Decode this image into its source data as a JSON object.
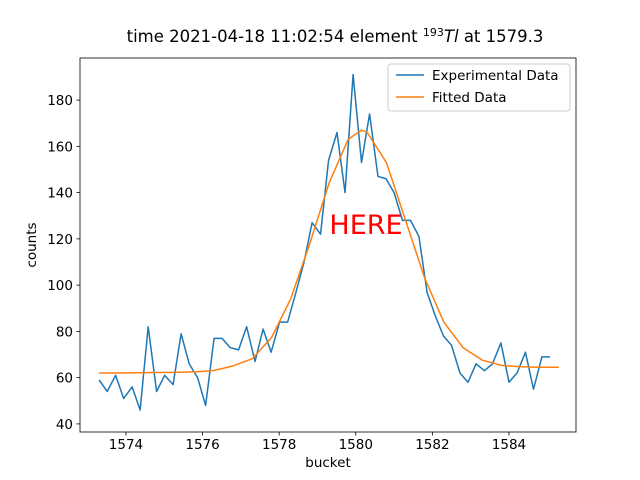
{
  "chart_data": {
    "type": "line",
    "title": {
      "before": "time 2021-04-18 11:02:54 element ",
      "isotope": "193",
      "symbol": "Tl",
      "after": " at 1579.3"
    },
    "xlabel": "bucket",
    "ylabel": "counts",
    "annotation": "HERE",
    "annotation_color": "#ff0000",
    "xlim": [
      1572.8,
      1585.75
    ],
    "ylim": [
      36.5,
      198.2
    ],
    "xticks": [
      1574,
      1576,
      1578,
      1580,
      1582,
      1584
    ],
    "yticks": [
      40,
      60,
      80,
      100,
      120,
      140,
      160,
      180
    ],
    "legend": "upper right",
    "series": [
      {
        "name": "Experimental Data",
        "color": "#1f77b4",
        "x": [
          1573.3,
          1573.51,
          1573.73,
          1573.94,
          1574.16,
          1574.37,
          1574.58,
          1574.8,
          1575.01,
          1575.23,
          1575.44,
          1575.65,
          1575.87,
          1576.08,
          1576.3,
          1576.51,
          1576.72,
          1576.94,
          1577.15,
          1577.37,
          1577.58,
          1577.79,
          1578.01,
          1578.22,
          1578.44,
          1578.65,
          1578.86,
          1579.08,
          1579.29,
          1579.51,
          1579.72,
          1579.93,
          1580.15,
          1580.36,
          1580.58,
          1580.79,
          1581.0,
          1581.22,
          1581.43,
          1581.65,
          1581.86,
          1582.07,
          1582.29,
          1582.5,
          1582.72,
          1582.93,
          1583.14,
          1583.36,
          1583.57,
          1583.79,
          1584.0,
          1584.21,
          1584.43,
          1584.64,
          1584.86,
          1585.07
        ],
        "values": [
          59,
          54,
          61,
          51,
          56,
          46,
          82,
          54,
          61,
          57,
          79,
          66,
          60,
          48,
          77,
          77,
          73,
          72,
          82,
          67,
          81,
          71,
          84,
          84,
          97,
          110,
          127,
          122,
          154,
          166,
          140,
          191,
          153,
          174,
          147,
          146,
          140,
          128,
          128,
          121,
          97,
          87,
          78,
          74,
          62,
          58,
          66,
          63,
          66,
          75,
          58,
          62,
          71,
          55,
          69,
          69
        ]
      },
      {
        "name": "Fitted Data",
        "color": "#ff7f0e",
        "x": [
          1573.3,
          1573.8,
          1574.3,
          1574.8,
          1575.3,
          1575.8,
          1576.3,
          1576.8,
          1577.3,
          1577.8,
          1578.3,
          1578.8,
          1579.3,
          1579.8,
          1580.15,
          1580.3,
          1580.8,
          1581.3,
          1581.8,
          1582.3,
          1582.8,
          1583.3,
          1583.8,
          1584.3,
          1584.8,
          1585.3
        ],
        "values": [
          62.0,
          62.0,
          62.1,
          62.2,
          62.3,
          62.5,
          63.1,
          65.1,
          68.2,
          77.3,
          94,
          118,
          144,
          163,
          167,
          166,
          153,
          128,
          103,
          84,
          73,
          67.6,
          65.3,
          64.7,
          64.5,
          64.5
        ]
      }
    ]
  }
}
